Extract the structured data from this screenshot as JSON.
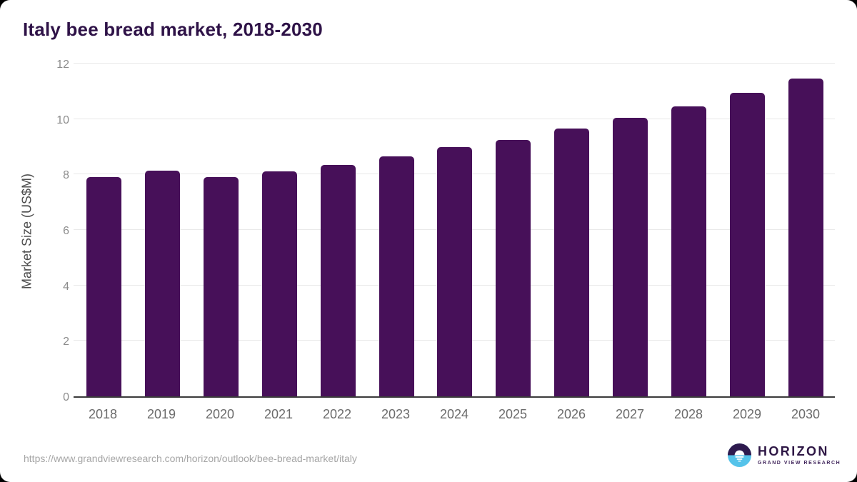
{
  "title": "Italy bee bread market, 2018-2030",
  "chart_data": {
    "type": "bar",
    "title": "Italy bee bread market, 2018-2030",
    "categories": [
      "2018",
      "2019",
      "2020",
      "2021",
      "2022",
      "2023",
      "2024",
      "2025",
      "2026",
      "2027",
      "2028",
      "2029",
      "2030"
    ],
    "values": [
      7.9,
      8.15,
      7.9,
      8.1,
      8.35,
      8.65,
      9.0,
      9.25,
      9.65,
      10.05,
      10.45,
      10.95,
      11.45
    ],
    "xlabel": "",
    "ylabel": "Market Size (US$M)",
    "ylim": [
      0,
      12
    ],
    "yticks": [
      0,
      2,
      4,
      6,
      8,
      10,
      12
    ],
    "grid": true,
    "legend": "none",
    "bar_color": "#471059"
  },
  "footer": {
    "url": "https://www.grandviewresearch.com/horizon/outlook/bee-bread-market/italy",
    "logo": {
      "name": "HORIZON",
      "subtitle": "GRAND VIEW RESEARCH",
      "icon": "horizon-sun-circle-icon",
      "icon_top_color": "#2e1a4e",
      "icon_bottom_color": "#55c3ea"
    }
  },
  "colors": {
    "title_text": "#2e1247",
    "bar_fill": "#471059",
    "gridline": "#e9e9e9",
    "axis_line": "#3b3b3b",
    "y_tick_text": "#8c8c8c",
    "x_tick_text": "#6b6b6b",
    "y_axis_title_text": "#4d4d4d",
    "url_text": "#a6a6a6",
    "background": "#ffffff"
  }
}
